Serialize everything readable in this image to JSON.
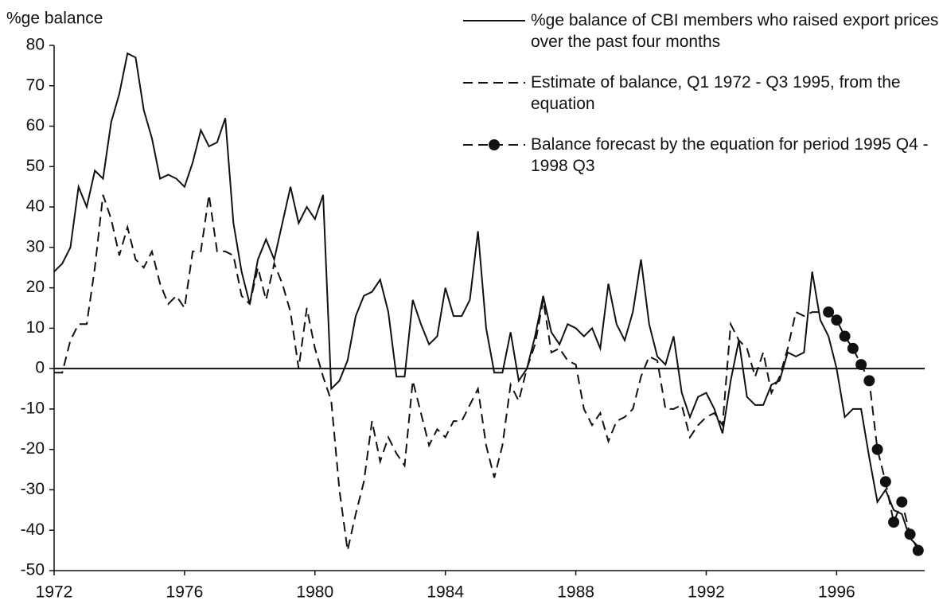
{
  "chart_data": {
    "type": "line",
    "ylabel": "%ge balance",
    "xlim": [
      1972,
      1998.7
    ],
    "xticks": [
      1972,
      1976,
      1980,
      1984,
      1988,
      1992,
      1996
    ],
    "ylim": [
      -50,
      80
    ],
    "yticks": [
      -50,
      -40,
      -30,
      -20,
      -10,
      0,
      10,
      20,
      30,
      40,
      50,
      60,
      70,
      80
    ],
    "zero_line": true,
    "grid": false,
    "series": [
      {
        "name": "%ge balance of CBI members who raised export prices over the past four months",
        "color": "#111111",
        "style": "solid",
        "markers": false,
        "x": [
          1972,
          1972.25,
          1972.5,
          1972.75,
          1973,
          1973.25,
          1973.5,
          1973.75,
          1974,
          1974.25,
          1974.5,
          1974.75,
          1975,
          1975.25,
          1975.5,
          1975.75,
          1976,
          1976.25,
          1976.5,
          1976.75,
          1977,
          1977.25,
          1977.5,
          1977.75,
          1978,
          1978.25,
          1978.5,
          1978.75,
          1979,
          1979.25,
          1979.5,
          1979.75,
          1980,
          1980.25,
          1980.5,
          1980.75,
          1981,
          1981.25,
          1981.5,
          1981.75,
          1982,
          1982.25,
          1982.5,
          1982.75,
          1983,
          1983.25,
          1983.5,
          1983.75,
          1984,
          1984.25,
          1984.5,
          1984.75,
          1985,
          1985.25,
          1985.5,
          1985.75,
          1986,
          1986.25,
          1986.5,
          1986.75,
          1987,
          1987.25,
          1987.5,
          1987.75,
          1988,
          1988.25,
          1988.5,
          1988.75,
          1989,
          1989.25,
          1989.5,
          1989.75,
          1990,
          1990.25,
          1990.5,
          1990.75,
          1991,
          1991.25,
          1991.5,
          1991.75,
          1992,
          1992.25,
          1992.5,
          1992.75,
          1993,
          1993.25,
          1993.5,
          1993.75,
          1994,
          1994.25,
          1994.5,
          1994.75,
          1995,
          1995.25,
          1995.5,
          1995.75,
          1996,
          1996.25,
          1996.5,
          1996.75,
          1997,
          1997.25,
          1997.5,
          1997.75,
          1998,
          1998.25,
          1998.5
        ],
        "values": [
          24,
          26,
          30,
          45,
          40,
          49,
          47,
          61,
          68,
          78,
          77,
          64,
          57,
          47,
          48,
          47,
          45,
          51,
          59,
          55,
          56,
          62,
          36,
          24,
          16,
          27,
          32,
          27,
          36,
          45,
          36,
          40,
          37,
          43,
          -5,
          -3,
          2,
          13,
          18,
          19,
          22,
          14,
          -2,
          -2,
          17,
          11,
          6,
          8,
          20,
          13,
          13,
          17,
          34,
          10,
          -1,
          -1,
          9,
          -3,
          0,
          8,
          18,
          9,
          6,
          11,
          10,
          8,
          10,
          5,
          21,
          11,
          7,
          14,
          27,
          11,
          3,
          1,
          8,
          -6,
          -12,
          -7,
          -6,
          -10,
          -16,
          -3,
          7,
          -7,
          -9,
          -9,
          -4,
          -3,
          4,
          3,
          4,
          24,
          12,
          8,
          0,
          -12,
          -10,
          -10,
          -22,
          -33,
          -30,
          -35,
          -36,
          -42,
          -44
        ]
      },
      {
        "name": "Estimate of balance, Q1 1972 - Q3 1995, from the equation",
        "color": "#111111",
        "style": "dashed",
        "markers": false,
        "x": [
          1972,
          1972.25,
          1972.5,
          1972.75,
          1973,
          1973.25,
          1973.5,
          1973.75,
          1974,
          1974.25,
          1974.5,
          1974.75,
          1975,
          1975.25,
          1975.5,
          1975.75,
          1976,
          1976.25,
          1976.5,
          1976.75,
          1977,
          1977.25,
          1977.5,
          1977.75,
          1978,
          1978.25,
          1978.5,
          1978.75,
          1979,
          1979.25,
          1979.5,
          1979.75,
          1980,
          1980.25,
          1980.5,
          1980.75,
          1981,
          1981.25,
          1981.5,
          1981.75,
          1982,
          1982.25,
          1982.5,
          1982.75,
          1983,
          1983.25,
          1983.5,
          1983.75,
          1984,
          1984.25,
          1984.5,
          1984.75,
          1985,
          1985.25,
          1985.5,
          1985.75,
          1986,
          1986.25,
          1986.5,
          1986.75,
          1987,
          1987.25,
          1987.5,
          1987.75,
          1988,
          1988.25,
          1988.5,
          1988.75,
          1989,
          1989.25,
          1989.5,
          1989.75,
          1990,
          1990.25,
          1990.5,
          1990.75,
          1991,
          1991.25,
          1991.5,
          1991.75,
          1992,
          1992.25,
          1992.5,
          1992.75,
          1993,
          1993.25,
          1993.5,
          1993.75,
          1994,
          1994.25,
          1994.5,
          1994.75,
          1995,
          1995.25,
          1995.5
        ],
        "values": [
          -1,
          -1,
          7,
          11,
          11,
          25,
          43,
          37,
          28,
          35,
          27,
          25,
          29,
          21,
          16,
          18,
          15,
          29,
          29,
          43,
          29,
          29,
          28,
          18,
          16,
          25,
          17,
          26,
          21,
          14,
          0,
          15,
          5,
          -2,
          -8,
          -30,
          -45,
          -36,
          -28,
          -13,
          -23,
          -17,
          -21,
          -24,
          -3,
          -11,
          -19,
          -15,
          -17,
          -13,
          -13,
          -9,
          -5,
          -19,
          -27,
          -19,
          -4,
          -8,
          0,
          6,
          17,
          4,
          5,
          2,
          1,
          -10,
          -14,
          -11,
          -18,
          -13,
          -12,
          -10,
          -2,
          3,
          2,
          -10,
          -10,
          -9,
          -17,
          -14,
          -12,
          -11,
          -14,
          11,
          7,
          5,
          -2,
          4,
          -6,
          -2,
          5,
          14,
          13,
          14,
          14
        ]
      },
      {
        "name": "Balance forecast by the equation for period 1995 Q4 - 1998 Q3",
        "color": "#111111",
        "style": "dashed",
        "markers": true,
        "x": [
          1995.75,
          1996,
          1996.25,
          1996.5,
          1996.75,
          1997,
          1997.25,
          1997.5,
          1997.75,
          1998,
          1998.25,
          1998.5
        ],
        "values": [
          14,
          12,
          8,
          5,
          1,
          -3,
          -20,
          -28,
          -38,
          -33,
          -41,
          -45
        ]
      }
    ]
  }
}
